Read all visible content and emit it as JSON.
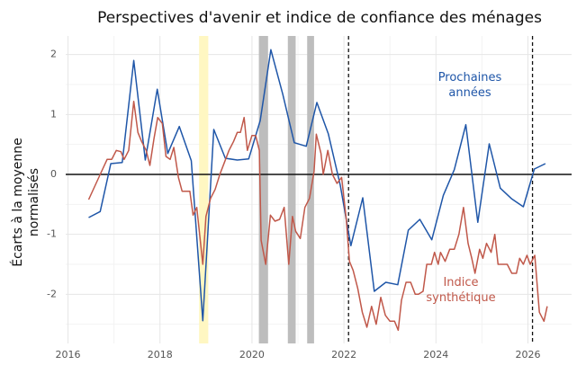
{
  "chart_data": {
    "type": "line",
    "title": "Perspectives d'avenir et indice de confiance des ménages",
    "y_label": [
      "Écarts à la moyenne",
      "normalisés"
    ],
    "xlim": [
      2015.95,
      2026.95
    ],
    "xticks": [
      2016,
      2018,
      2020,
      2022,
      2024,
      2026
    ],
    "ylim": [
      -2.82,
      2.31
    ],
    "yticks": [
      -2,
      -1,
      0,
      1,
      2
    ],
    "grid": true,
    "hline": 0,
    "vlines": [
      2022.1,
      2026.1
    ],
    "shaded": [
      {
        "start": 2018.85,
        "end": 2019.05,
        "color": "#fff7c2"
      },
      {
        "start": 2020.15,
        "end": 2020.35,
        "color": "#bdbdbd"
      },
      {
        "start": 2020.78,
        "end": 2020.95,
        "color": "#bdbdbd"
      },
      {
        "start": 2021.2,
        "end": 2021.35,
        "color": "#bdbdbd"
      }
    ],
    "series": [
      {
        "name": "Prochaines années",
        "color": "#1f56a8",
        "x": [
          2016.45,
          2016.7,
          2016.93,
          2017.18,
          2017.43,
          2017.68,
          2017.94,
          2018.17,
          2018.42,
          2018.68,
          2018.93,
          2019.17,
          2019.42,
          2019.68,
          2019.93,
          2020.18,
          2020.41,
          2020.67,
          2020.92,
          2021.18,
          2021.41,
          2021.66,
          2021.92,
          2022.15,
          2022.41,
          2022.66,
          2022.91,
          2023.17,
          2023.4,
          2023.65,
          2023.91,
          2024.16,
          2024.4,
          2024.65,
          2024.91,
          2025.16,
          2025.4,
          2025.65,
          2025.9,
          2026.14,
          2026.38
        ],
        "values": [
          -0.72,
          -0.62,
          0.18,
          0.2,
          1.9,
          0.24,
          1.42,
          0.35,
          0.8,
          0.23,
          -2.44,
          0.75,
          0.27,
          0.24,
          0.26,
          0.9,
          2.08,
          1.34,
          0.53,
          0.47,
          1.2,
          0.68,
          -0.18,
          -1.19,
          -0.39,
          -1.95,
          -1.8,
          -1.84,
          -0.93,
          -0.75,
          -1.09,
          -0.35,
          0.08,
          0.83,
          -0.8,
          0.51,
          -0.23,
          -0.41,
          -0.54,
          0.09,
          0.18
        ]
      },
      {
        "name": "Indice synthétique",
        "color": "#c0584a",
        "x": [
          2016.45,
          2016.7,
          2016.85,
          2016.95,
          2017.05,
          2017.15,
          2017.22,
          2017.32,
          2017.43,
          2017.52,
          2017.6,
          2017.7,
          2017.78,
          2017.87,
          2017.95,
          2018.05,
          2018.13,
          2018.22,
          2018.3,
          2018.4,
          2018.48,
          2018.58,
          2018.65,
          2018.72,
          2018.8,
          2018.93,
          2019.0,
          2019.1,
          2019.2,
          2019.3,
          2019.4,
          2019.5,
          2019.6,
          2019.68,
          2019.75,
          2019.83,
          2019.9,
          2020.0,
          2020.08,
          2020.16,
          2020.2,
          2020.3,
          2020.4,
          2020.5,
          2020.6,
          2020.7,
          2020.8,
          2020.88,
          2020.95,
          2021.05,
          2021.15,
          2021.25,
          2021.35,
          2021.4,
          2021.5,
          2021.55,
          2021.65,
          2021.75,
          2021.85,
          2021.95,
          2022.05,
          2022.12,
          2022.2,
          2022.3,
          2022.4,
          2022.5,
          2022.6,
          2022.7,
          2022.8,
          2022.9,
          2023.0,
          2023.1,
          2023.18,
          2023.25,
          2023.35,
          2023.45,
          2023.55,
          2023.62,
          2023.72,
          2023.8,
          2023.9,
          2023.97,
          2024.05,
          2024.1,
          2024.2,
          2024.3,
          2024.4,
          2024.5,
          2024.6,
          2024.7,
          2024.78,
          2024.85,
          2024.95,
          2025.02,
          2025.1,
          2025.2,
          2025.28,
          2025.35,
          2025.45,
          2025.55,
          2025.65,
          2025.75,
          2025.82,
          2025.9,
          2025.98,
          2026.05,
          2026.15,
          2026.25,
          2026.35,
          2026.42
        ],
        "values": [
          -0.42,
          0.0,
          0.25,
          0.25,
          0.4,
          0.38,
          0.25,
          0.4,
          1.22,
          0.7,
          0.55,
          0.4,
          0.15,
          0.6,
          0.95,
          0.85,
          0.3,
          0.25,
          0.45,
          -0.05,
          -0.28,
          -0.28,
          -0.28,
          -0.68,
          -0.55,
          -1.5,
          -0.7,
          -0.4,
          -0.25,
          0.0,
          0.2,
          0.4,
          0.55,
          0.7,
          0.7,
          0.95,
          0.4,
          0.65,
          0.65,
          0.4,
          -1.1,
          -1.5,
          -0.68,
          -0.78,
          -0.75,
          -0.55,
          -1.5,
          -0.7,
          -0.95,
          -1.07,
          -0.55,
          -0.4,
          0.05,
          0.67,
          0.35,
          0.0,
          0.4,
          0.0,
          -0.15,
          -0.05,
          -0.75,
          -1.45,
          -1.6,
          -1.9,
          -2.3,
          -2.55,
          -2.2,
          -2.5,
          -2.05,
          -2.35,
          -2.45,
          -2.45,
          -2.6,
          -2.1,
          -1.8,
          -1.8,
          -2.0,
          -2.0,
          -1.95,
          -1.5,
          -1.5,
          -1.3,
          -1.5,
          -1.3,
          -1.45,
          -1.25,
          -1.25,
          -1.0,
          -0.55,
          -1.15,
          -1.4,
          -1.65,
          -1.25,
          -1.4,
          -1.15,
          -1.3,
          -1.0,
          -1.5,
          -1.5,
          -1.5,
          -1.65,
          -1.65,
          -1.4,
          -1.5,
          -1.35,
          -1.5,
          -1.35,
          -2.3,
          -2.45,
          -2.2
        ]
      }
    ]
  }
}
